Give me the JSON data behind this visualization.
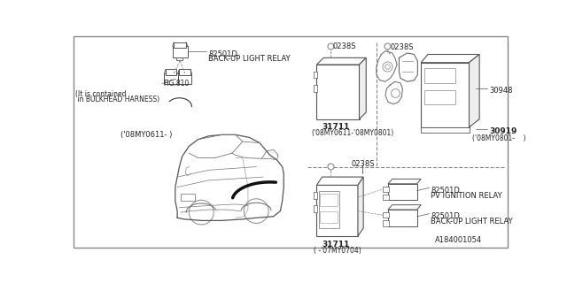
{
  "bg_color": "#ffffff",
  "line_color": "#555555",
  "figure_number": "A184001054",
  "relay_top_label": "82501D",
  "relay_top_desc": "BACK-UP LIGHT RELAY",
  "fig810_label": "FIG.810",
  "fig810_note1": "(It is contained",
  "fig810_note2": " in BULKHEAD HARNESS)",
  "date_top": "('08MY0611- )",
  "tcm_upper_label": "31711",
  "tcm_upper_date": "('08MY0611-'08MY0801)",
  "conn_label_ul": "0238S",
  "conn_label_ur": "0238S",
  "conn_label_lo": "0238S",
  "part30948": "30948",
  "part30919": "30919",
  "part30919_date": "('08MY0801-    )",
  "tcm_lower_label": "31711",
  "tcm_lower_date": "( -'07MY0704)",
  "ign_relay_label": "82501D",
  "ign_relay_desc": "PV IGNITION RELAY",
  "bup_relay_label": "82501D",
  "bup_relay_desc": "BACK-UP LIGHT RELAY",
  "car_color": "#555555",
  "dash_color": "#888888",
  "text_color": "#222222"
}
